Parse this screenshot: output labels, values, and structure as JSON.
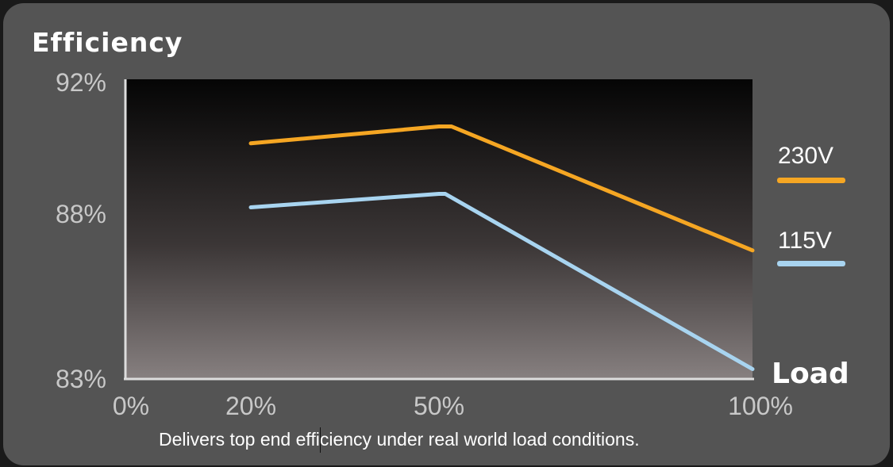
{
  "chart_data": {
    "type": "line",
    "title": "Efficiency",
    "xlabel": "Load",
    "ylabel": "Efficiency",
    "x_ticks": [
      "0%",
      "20%",
      "50%",
      "100%"
    ],
    "y_ticks": [
      "92%",
      "88%",
      "83%"
    ],
    "xlim": [
      0,
      100
    ],
    "ylim": [
      83,
      92
    ],
    "grid": false,
    "legend_position": "right",
    "series": [
      {
        "name": "230V",
        "color": "#f5a623",
        "x": [
          20,
          50,
          52,
          100
        ],
        "y": [
          90.1,
          90.6,
          90.6,
          86.9
        ]
      },
      {
        "name": "115V",
        "color": "#a8d4f0",
        "x": [
          20,
          50,
          51,
          100
        ],
        "y": [
          88.2,
          88.6,
          88.6,
          83.3
        ]
      }
    ],
    "caption": "Delivers top end efficiency under real world load conditions."
  }
}
